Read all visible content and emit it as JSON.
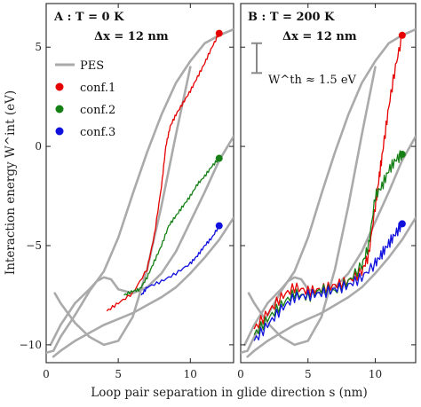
{
  "chart_data": {
    "type": "line",
    "xlabel": "Loop pair separation in glide direction s (nm)",
    "ylabel": "Interaction energy W^int (eV)",
    "xlim": [
      0,
      13
    ],
    "ylim": [
      -10.9,
      7.2
    ],
    "xticks": [
      "0",
      "5",
      "10"
    ],
    "yticks": [
      "5",
      "0",
      "−5",
      "−10"
    ],
    "colors": {
      "pes": "#aaaaaa",
      "conf1": "#e60000",
      "conf2": "#168016",
      "conf3": "#1111dd"
    },
    "legend": {
      "placement": "upper-left of left panel",
      "entries": [
        {
          "key": "pes",
          "label": "PES"
        },
        {
          "key": "conf1",
          "label": "conf.1"
        },
        {
          "key": "conf2",
          "label": "conf.2"
        },
        {
          "key": "conf3",
          "label": "conf.3"
        }
      ]
    },
    "pes_curves": [
      {
        "x": [
          0,
          0.5,
          1,
          2,
          3,
          4,
          5,
          6,
          7,
          8,
          9,
          10,
          11,
          12,
          13
        ],
        "y": [
          -10.4,
          -10.3,
          -9.6,
          -8.5,
          -7.3,
          -6.3,
          -4.6,
          -2.4,
          -0.3,
          1.6,
          3.2,
          4.3,
          5.2,
          5.6,
          5.9
        ]
      },
      {
        "x": [
          0.3,
          1,
          2,
          3,
          3.5,
          4,
          4.5,
          5,
          6,
          7,
          8,
          9,
          10,
          11,
          12,
          13
        ],
        "y": [
          -10.0,
          -9.0,
          -7.9,
          -7.2,
          -6.8,
          -6.6,
          -6.7,
          -7.2,
          -7.4,
          -7.1,
          -6.4,
          -5.3,
          -3.8,
          -2.3,
          -0.7,
          0.5
        ]
      },
      {
        "x": [
          0.5,
          1,
          2,
          3,
          4,
          5,
          6,
          7,
          8,
          9,
          10,
          11,
          12,
          13
        ],
        "y": [
          -10.6,
          -10.3,
          -9.8,
          -9.4,
          -9.0,
          -8.7,
          -8.4,
          -8.0,
          -7.6,
          -7.1,
          -6.4,
          -5.6,
          -4.7,
          -3.6
        ]
      },
      {
        "x": [
          0.6,
          1,
          2,
          3,
          4,
          5,
          6,
          7,
          8,
          9,
          10
        ],
        "y": [
          -7.4,
          -7.9,
          -8.9,
          -9.6,
          -10.0,
          -9.8,
          -8.6,
          -6.2,
          -3.0,
          0.6,
          4.0
        ]
      }
    ],
    "panels": [
      {
        "title_line1": "A :  T = 0 K",
        "title_line2": "Δx = 12 nm",
        "series": [
          {
            "key": "conf1",
            "name": "conf.1",
            "x": [
              4.2,
              5,
              6,
              7,
              7.5,
              8,
              8.3,
              8.6,
              9,
              9.5,
              10,
              10.5,
              11,
              11.5,
              12
            ],
            "y": [
              -8.3,
              -7.9,
              -7.4,
              -6.2,
              -4.5,
              -2.0,
              0.0,
              1.0,
              1.6,
              2.2,
              2.8,
              3.5,
              4.2,
              5.0,
              5.7
            ],
            "end_marker": {
              "x": 12,
              "y": 5.7
            }
          },
          {
            "key": "conf2",
            "name": "conf.2",
            "x": [
              5.4,
              6,
              6.5,
              7,
              7.5,
              8,
              8.5,
              9,
              9.5,
              10,
              10.5,
              11,
              11.5,
              12
            ],
            "y": [
              -7.5,
              -7.3,
              -7.2,
              -6.6,
              -5.8,
              -5.0,
              -4.0,
              -3.5,
              -3.0,
              -2.5,
              -1.9,
              -1.5,
              -1.0,
              -0.6
            ],
            "end_marker": {
              "x": 12,
              "y": -0.6
            }
          },
          {
            "key": "conf3",
            "name": "conf.3",
            "x": [
              6.6,
              7,
              8,
              9,
              10,
              10.5,
              11,
              11.5,
              12
            ],
            "y": [
              -7.5,
              -7.1,
              -6.8,
              -6.4,
              -5.9,
              -5.5,
              -5.0,
              -4.6,
              -4.0
            ],
            "end_marker": {
              "x": 12,
              "y": -4.0
            }
          }
        ]
      },
      {
        "title_line1": "B :  T = 200 K",
        "title_line2": "Δx = 12 nm",
        "annotation": {
          "label": "W^th ≈ 1.5 eV",
          "bar_y_top": 5.2,
          "bar_y_bottom": 3.7
        },
        "series": [
          {
            "key": "conf1",
            "name": "conf.1",
            "x": [
              1,
              2,
              3,
              4,
              5,
              6,
              7,
              8,
              9,
              9.5,
              10,
              10.3,
              10.6,
              11,
              11.5,
              12
            ],
            "y": [
              -9.2,
              -8.4,
              -7.6,
              -7.1,
              -7.3,
              -7.2,
              -7.0,
              -6.8,
              -6.3,
              -5.5,
              -3.0,
              -1.5,
              0.0,
              2.0,
              4.0,
              5.6
            ],
            "end_marker": {
              "x": 12,
              "y": 5.6
            }
          },
          {
            "key": "conf2",
            "name": "conf.2",
            "x": [
              1,
              2,
              3,
              4,
              5,
              6,
              7,
              8,
              9,
              9.5,
              10,
              10.5,
              11,
              11.5,
              12
            ],
            "y": [
              -9.5,
              -8.7,
              -8.0,
              -7.4,
              -7.6,
              -7.2,
              -7.3,
              -6.8,
              -6.0,
              -5.0,
              -2.5,
              -2.0,
              -1.2,
              -0.7,
              -0.4
            ],
            "end_marker": {
              "x": 12,
              "y": -0.4
            }
          },
          {
            "key": "conf3",
            "name": "conf.3",
            "x": [
              1,
              2,
              3,
              4,
              5,
              6,
              7,
              8,
              9,
              10,
              10.5,
              11,
              11.5,
              12
            ],
            "y": [
              -9.8,
              -9.0,
              -8.2,
              -7.6,
              -7.5,
              -7.4,
              -7.2,
              -7.0,
              -6.6,
              -5.9,
              -5.4,
              -4.9,
              -4.4,
              -3.9
            ],
            "end_marker": {
              "x": 12,
              "y": -3.9
            }
          }
        ]
      }
    ]
  }
}
